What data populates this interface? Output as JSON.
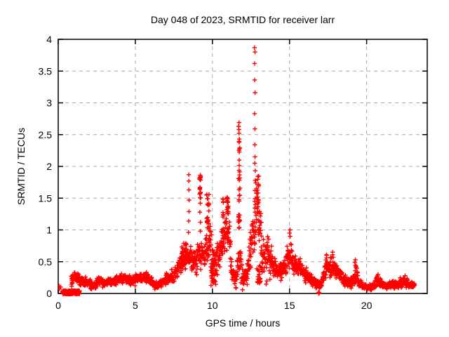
{
  "chart_data": {
    "type": "scatter",
    "title": "Day 048 of 2023, SRMTID for receiver larr",
    "xlabel": "GPS time / hours",
    "ylabel": "SRMTID / TECUs",
    "xlim": [
      0,
      23.93
    ],
    "ylim": [
      0,
      4
    ],
    "xticks": [
      0,
      5,
      10,
      15,
      20
    ],
    "xtick_labels": [
      "0",
      "5",
      "10",
      "15",
      "20"
    ],
    "yticks": [
      0,
      0.5,
      1,
      1.5,
      2,
      2.5,
      3,
      3.5,
      4
    ],
    "ytick_labels": [
      "0",
      "0.5",
      "1",
      "1.5",
      "2",
      "2.5",
      "3",
      "3.5",
      "4"
    ],
    "grid": true,
    "grid_color": "#a8a8a8",
    "marker": "plus",
    "marker_color": "#ff0000",
    "border_color": "#000000",
    "background_color": "#ffffff",
    "series_description": "SRMTID scatter over GPS time; noisy low band ~0.1-0.3 TECU with TID activity bursts 8-15h, max 3.87 TECU near 12.8h",
    "baseline_band": [
      [
        0.85,
        0.22,
        0.1
      ],
      [
        1.05,
        0.3,
        0.09
      ],
      [
        1.3,
        0.22,
        0.08
      ],
      [
        1.6,
        0.18,
        0.07
      ],
      [
        2.0,
        0.16,
        0.06
      ],
      [
        2.3,
        0.12,
        0.05
      ],
      [
        2.7,
        0.21,
        0.07
      ],
      [
        3.0,
        0.16,
        0.06
      ],
      [
        3.3,
        0.18,
        0.06
      ],
      [
        3.7,
        0.21,
        0.07
      ],
      [
        4.0,
        0.22,
        0.07
      ],
      [
        4.3,
        0.25,
        0.07
      ],
      [
        4.7,
        0.19,
        0.06
      ],
      [
        5.0,
        0.21,
        0.06
      ],
      [
        5.4,
        0.25,
        0.07
      ],
      [
        5.7,
        0.26,
        0.07
      ],
      [
        6.0,
        0.2,
        0.06
      ],
      [
        6.3,
        0.12,
        0.05
      ],
      [
        6.7,
        0.17,
        0.06
      ],
      [
        7.0,
        0.22,
        0.07
      ],
      [
        7.4,
        0.26,
        0.09
      ],
      [
        7.7,
        0.35,
        0.12
      ],
      [
        8.0,
        0.5,
        0.14
      ],
      [
        8.3,
        0.6,
        0.13
      ],
      [
        8.6,
        0.55,
        0.15
      ],
      [
        8.9,
        0.5,
        0.18
      ],
      [
        9.2,
        0.6,
        0.2
      ],
      [
        9.5,
        0.6,
        0.22
      ],
      [
        9.8,
        0.8,
        0.28
      ],
      [
        10.0,
        0.55,
        0.3
      ],
      [
        10.3,
        0.45,
        0.28
      ],
      [
        10.6,
        0.75,
        0.3
      ],
      [
        10.9,
        1.0,
        0.3
      ],
      [
        11.1,
        0.8,
        0.3
      ],
      [
        11.3,
        0.3,
        0.15
      ],
      [
        11.55,
        0.2,
        0.12
      ],
      [
        11.75,
        0.55,
        0.3
      ],
      [
        11.9,
        0.3,
        0.18
      ],
      [
        12.1,
        0.22,
        0.12
      ],
      [
        12.3,
        0.35,
        0.2
      ],
      [
        12.5,
        0.8,
        0.35
      ],
      [
        12.7,
        1.0,
        0.35
      ],
      [
        12.9,
        1.45,
        0.4
      ],
      [
        13.1,
        0.9,
        0.35
      ],
      [
        13.35,
        0.55,
        0.3
      ],
      [
        13.6,
        0.6,
        0.3
      ],
      [
        13.85,
        0.5,
        0.2
      ],
      [
        14.1,
        0.4,
        0.12
      ],
      [
        14.35,
        0.32,
        0.1
      ],
      [
        14.6,
        0.42,
        0.15
      ],
      [
        14.85,
        0.55,
        0.2
      ],
      [
        15.0,
        0.6,
        0.22
      ],
      [
        15.2,
        0.5,
        0.18
      ],
      [
        15.45,
        0.4,
        0.13
      ],
      [
        15.7,
        0.42,
        0.13
      ],
      [
        16.0,
        0.3,
        0.1
      ],
      [
        16.3,
        0.24,
        0.08
      ],
      [
        16.6,
        0.18,
        0.07
      ],
      [
        16.9,
        0.12,
        0.06
      ],
      [
        17.1,
        0.16,
        0.07
      ],
      [
        17.3,
        0.4,
        0.14
      ],
      [
        17.45,
        0.42,
        0.15
      ],
      [
        17.6,
        0.35,
        0.13
      ],
      [
        17.8,
        0.45,
        0.15
      ],
      [
        18.0,
        0.38,
        0.13
      ],
      [
        18.3,
        0.28,
        0.1
      ],
      [
        18.6,
        0.2,
        0.08
      ],
      [
        18.9,
        0.16,
        0.07
      ],
      [
        19.15,
        0.22,
        0.1
      ],
      [
        19.3,
        0.32,
        0.14
      ],
      [
        19.5,
        0.16,
        0.08
      ],
      [
        19.8,
        0.12,
        0.05
      ],
      [
        20.1,
        0.09,
        0.04
      ],
      [
        20.4,
        0.11,
        0.05
      ],
      [
        20.7,
        0.2,
        0.08
      ],
      [
        20.9,
        0.16,
        0.06
      ],
      [
        21.1,
        0.13,
        0.05
      ],
      [
        21.4,
        0.12,
        0.05
      ],
      [
        21.7,
        0.16,
        0.06
      ],
      [
        22.0,
        0.12,
        0.05
      ],
      [
        22.3,
        0.17,
        0.07
      ],
      [
        22.5,
        0.21,
        0.07
      ],
      [
        22.7,
        0.13,
        0.05
      ],
      [
        23.0,
        0.14,
        0.05
      ],
      [
        23.1,
        0.13,
        0.05
      ]
    ],
    "baseline_step_hours": 0.022,
    "baseline_traces": 2,
    "dense_columns": [
      [
        9.2,
        0.1,
        1.9,
        1.5,
        16
      ],
      [
        9.7,
        0.18,
        1.65,
        1.0,
        22
      ],
      [
        10.7,
        0.08,
        1.55,
        0.85,
        12
      ],
      [
        11.0,
        0.14,
        1.55,
        1.25,
        20
      ],
      [
        11.73,
        0.1,
        2.69,
        0.95,
        34
      ],
      [
        12.97,
        0.08,
        1.9,
        1.25,
        14
      ],
      [
        10.05,
        0.3,
        0.55,
        0.12,
        30
      ],
      [
        13.05,
        0.35,
        0.45,
        0.15,
        26
      ],
      [
        8.15,
        0.35,
        0.8,
        0.35,
        30
      ]
    ],
    "spike_columns": [
      {
        "x": 8.47,
        "ys": [
          1.87,
          1.77,
          1.63,
          1.47,
          1.29,
          1.14,
          0.96
        ]
      },
      {
        "x": 9.21,
        "ys": [
          1.42,
          1.28,
          1.12,
          0.98
        ]
      },
      {
        "x": 11.72,
        "ys": [
          2.69,
          2.63,
          2.58
        ]
      },
      {
        "x": 12.75,
        "ys": [
          3.87,
          3.8,
          3.62,
          3.36,
          3.16,
          2.83,
          2.59,
          2.34,
          2.15,
          2.05,
          1.93,
          1.78,
          1.62,
          1.45,
          1.28,
          1.12,
          0.98
        ]
      },
      {
        "x": 15.02,
        "ys": [
          1.0,
          0.95,
          0.9
        ]
      },
      {
        "x": 17.42,
        "ys": [
          0.6,
          0.56
        ]
      },
      {
        "x": 17.8,
        "ys": [
          0.65,
          0.61
        ]
      },
      {
        "x": 19.25,
        "ys": [
          0.53,
          0.49
        ]
      },
      {
        "x": 20.72,
        "ys": [
          0.3
        ]
      },
      {
        "x": 22.48,
        "ys": [
          0.28
        ]
      }
    ],
    "solid_bar": {
      "x0": 0.28,
      "x1": 1.38,
      "y0": -0.01,
      "y1": 0.045,
      "n": 260
    },
    "isolated_points": [
      [
        0.05,
        0.12
      ],
      [
        0.09,
        0.07
      ],
      [
        0.16,
        0.1
      ],
      [
        16.88,
        0.02
      ],
      [
        16.93,
        0.01
      ],
      [
        16.9,
        0.0
      ]
    ]
  }
}
